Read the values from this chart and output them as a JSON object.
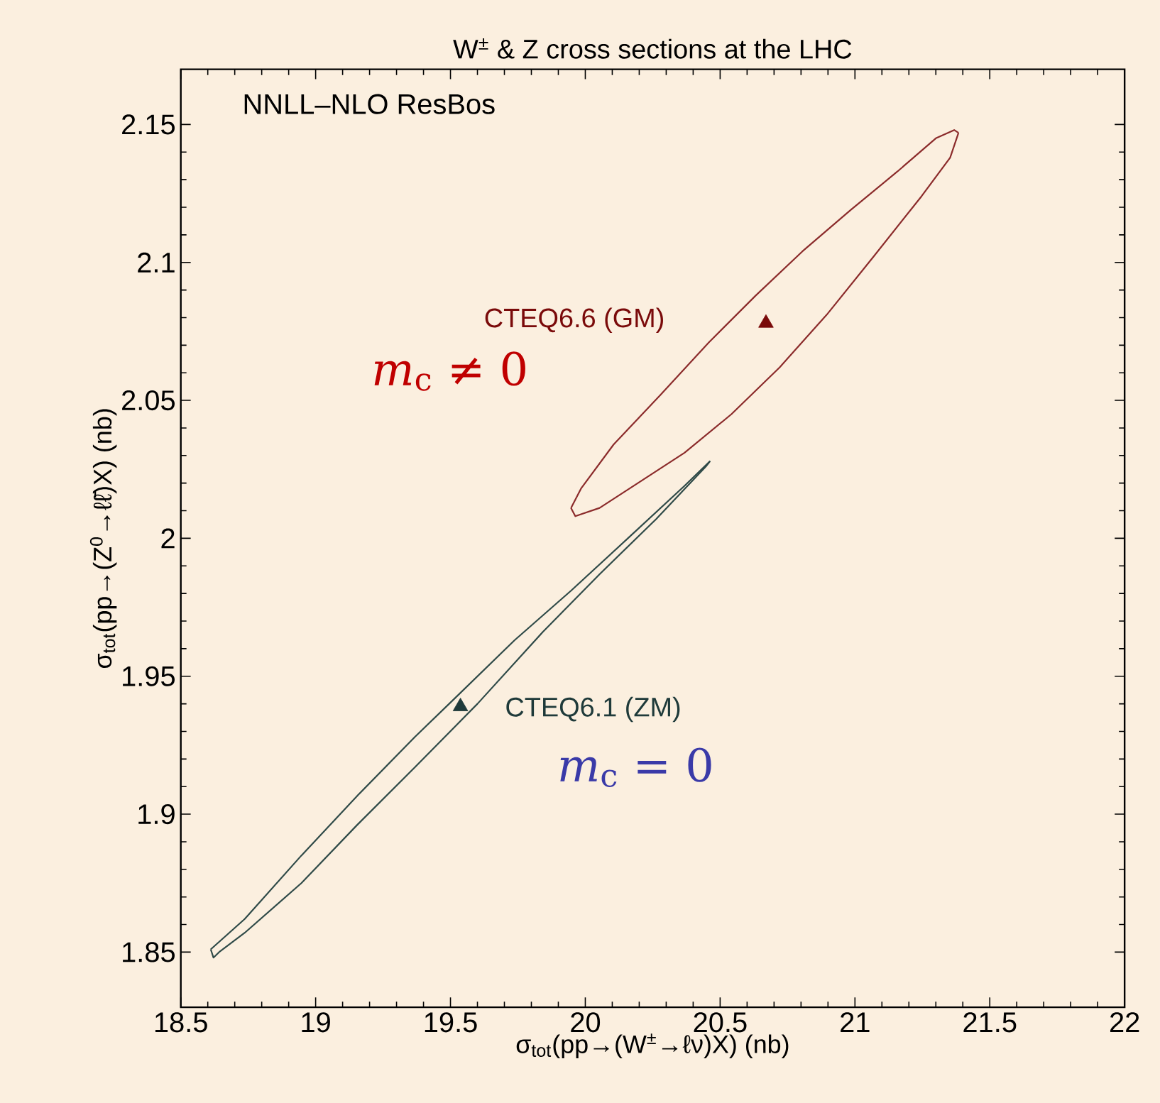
{
  "chart_data": {
    "type": "scatter",
    "title": "W$^{±}$ & Z cross sections at the LHC",
    "xlabel": "σ$_{tot}$(pp→(W$^{±}$→ℓν)X) (nb)",
    "ylabel": "σ$_{tot}$(pp→(Z$^{0}$→ℓℓ̄)X) (nb)",
    "xlim": [
      18.5,
      22
    ],
    "ylim": [
      1.83,
      2.17
    ],
    "xticks": [
      18.5,
      19,
      19.5,
      20,
      20.5,
      21,
      21.5,
      22
    ],
    "yticks": [
      1.85,
      1.9,
      1.95,
      2,
      2.05,
      2.1,
      2.15
    ],
    "annotations": [
      "NNLL–NLO ResBos",
      "*m*$_{c}$ ≠ 0",
      "*m*$_{c}$ = 0"
    ],
    "series": [
      {
        "type": "line",
        "color": "#8b2b2b",
        "x": [
          19.947,
          19.963,
          20.053,
          20.195,
          20.368,
          20.542,
          20.721,
          20.895,
          21.068,
          21.247,
          21.353,
          21.384
        ],
        "values": [
          2.011,
          2.008,
          2.011,
          2.02,
          2.031,
          2.045,
          2.062,
          2.081,
          2.102,
          2.124,
          2.138,
          2.147
        ]
      },
      {
        "type": "line",
        "color": "#8b2b2b",
        "x": [
          19.947,
          19.984,
          20.105,
          20.279,
          20.458,
          20.632,
          20.805,
          20.984,
          21.158,
          21.3,
          21.368,
          21.384
        ],
        "values": [
          2.011,
          2.018,
          2.034,
          2.052,
          2.071,
          2.088,
          2.104,
          2.119,
          2.133,
          2.145,
          2.148,
          2.147
        ]
      },
      {
        "type": "scatter",
        "name": "CTEQ6.6 (GM)",
        "color": "#7a0a0a",
        "marker": "triangle",
        "x": [
          20.67
        ],
        "values": [
          2.078
        ]
      },
      {
        "type": "line",
        "color": "#2f4a48",
        "x": [
          18.611,
          18.621,
          18.642,
          18.737,
          18.947,
          19.153,
          19.368,
          19.6,
          19.842,
          20.053,
          20.263,
          20.447,
          20.463
        ],
        "values": [
          1.851,
          1.848,
          1.85,
          1.857,
          1.875,
          1.896,
          1.917,
          1.94,
          1.966,
          1.987,
          2.007,
          2.026,
          2.028
        ]
      },
      {
        "type": "line",
        "color": "#2f4a48",
        "x": [
          18.611,
          18.737,
          18.947,
          19.158,
          19.368,
          19.495,
          19.737,
          19.947,
          20.158,
          20.368,
          20.463
        ],
        "values": [
          1.851,
          1.862,
          1.885,
          1.907,
          1.928,
          1.94,
          1.963,
          1.981,
          2,
          2.019,
          2.028
        ]
      },
      {
        "type": "scatter",
        "name": "CTEQ6.1 (ZM)",
        "color": "#1f3a3a",
        "marker": "triangle",
        "x": [
          19.537
        ],
        "values": [
          1.939
        ]
      }
    ]
  }
}
